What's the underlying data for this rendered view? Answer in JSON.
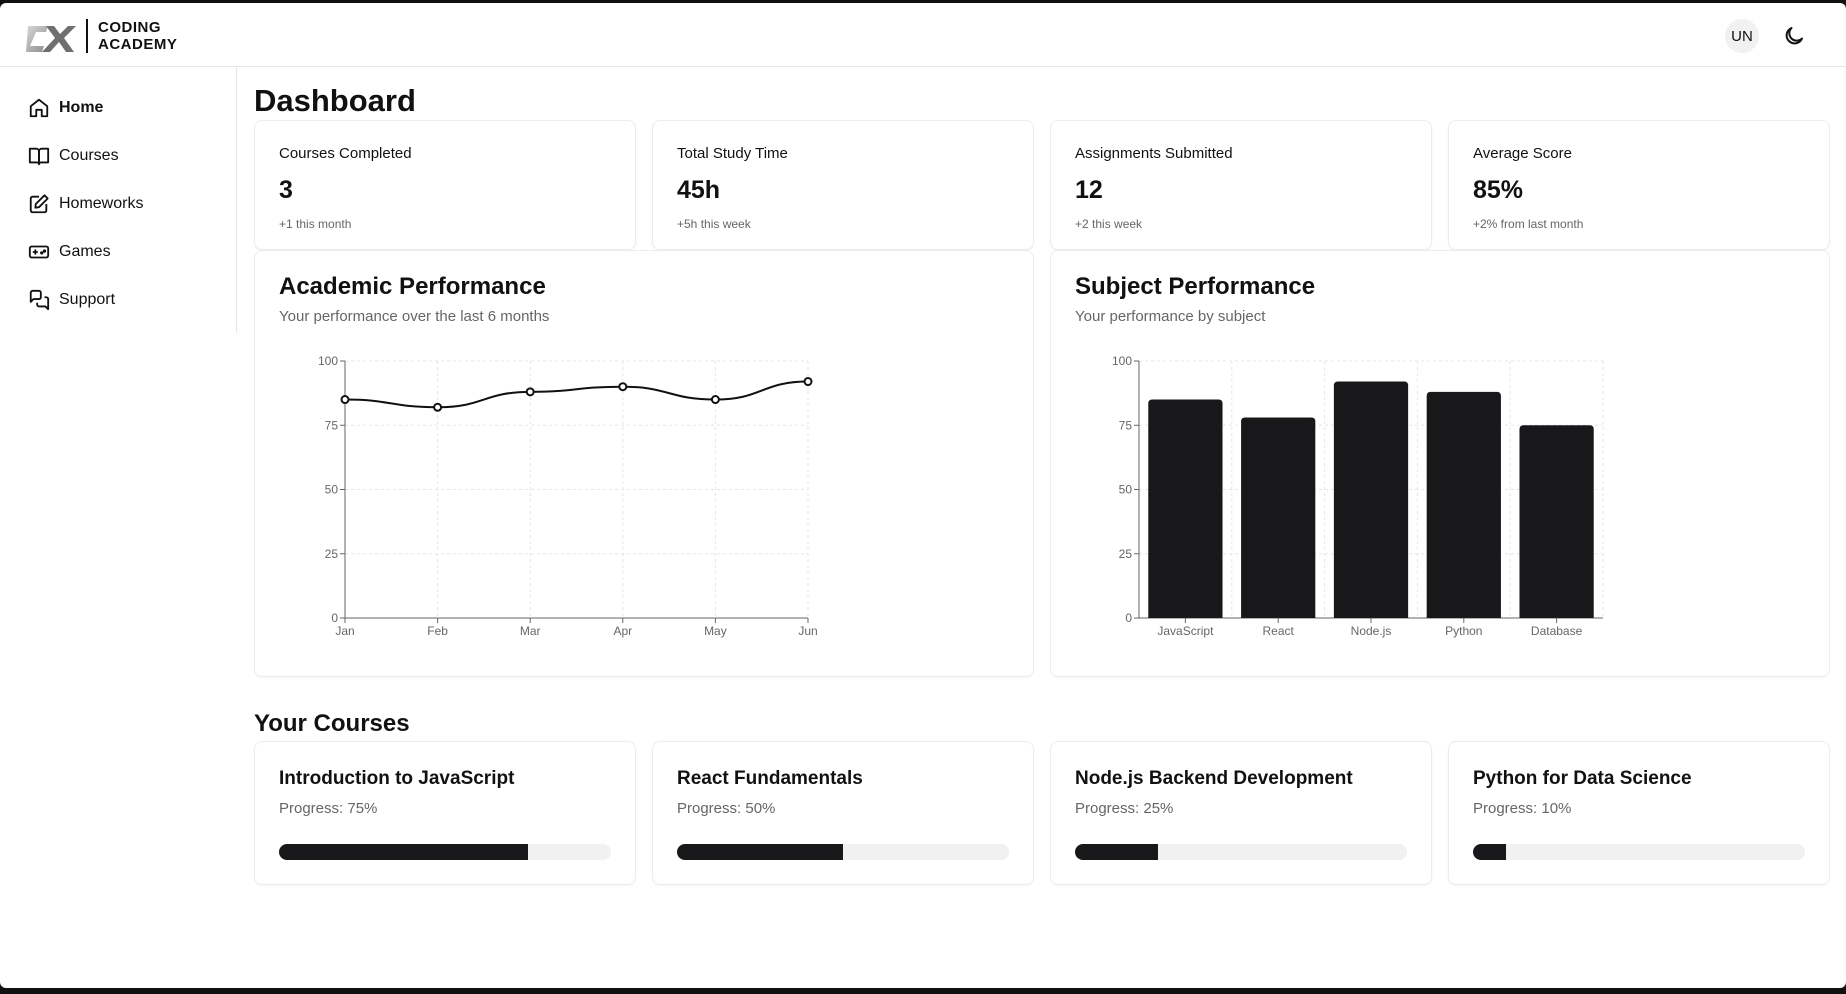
{
  "app": {
    "brand_line1": "CODING",
    "brand_line2": "ACADEMY",
    "user_initials": "UN"
  },
  "sidebar": {
    "items": [
      {
        "label": "Home",
        "icon": "home-icon",
        "active": true
      },
      {
        "label": "Courses",
        "icon": "book-icon"
      },
      {
        "label": "Homeworks",
        "icon": "edit-icon"
      },
      {
        "label": "Games",
        "icon": "gamepad-icon"
      },
      {
        "label": "Support",
        "icon": "chat-icon"
      }
    ]
  },
  "page": {
    "title": "Dashboard"
  },
  "stats": [
    {
      "label": "Courses Completed",
      "value": "3",
      "note": "+1 this month"
    },
    {
      "label": "Total Study Time",
      "value": "45h",
      "note": "+5h this week"
    },
    {
      "label": "Assignments Submitted",
      "value": "12",
      "note": "+2 this week"
    },
    {
      "label": "Average Score",
      "value": "85%",
      "note": "+2% from last month"
    }
  ],
  "academic_chart": {
    "title": "Academic Performance",
    "subtitle": "Your performance over the last 6 months"
  },
  "subject_chart": {
    "title": "Subject Performance",
    "subtitle": "Your performance by subject"
  },
  "chart_data": [
    {
      "type": "line",
      "x": [
        "Jan",
        "Feb",
        "Mar",
        "Apr",
        "May",
        "Jun"
      ],
      "values": [
        85,
        82,
        88,
        90,
        85,
        92
      ],
      "ylim": [
        0,
        100
      ],
      "yticks": [
        0,
        25,
        50,
        75,
        100
      ],
      "grid": true
    },
    {
      "type": "bar",
      "categories": [
        "JavaScript",
        "React",
        "Node.js",
        "Python",
        "Database"
      ],
      "values": [
        85,
        78,
        92,
        88,
        75
      ],
      "ylim": [
        0,
        100
      ],
      "yticks": [
        0,
        25,
        50,
        75,
        100
      ],
      "grid": true
    }
  ],
  "courses_section": {
    "title": "Your Courses"
  },
  "courses": [
    {
      "title": "Introduction to JavaScript",
      "progress_label": "Progress: 75%",
      "progress": 75
    },
    {
      "title": "React Fundamentals",
      "progress_label": "Progress: 50%",
      "progress": 50
    },
    {
      "title": "Node.js Backend Development",
      "progress_label": "Progress: 25%",
      "progress": 25
    },
    {
      "title": "Python for Data Science",
      "progress_label": "Progress: 10%",
      "progress": 10
    }
  ],
  "colors": {
    "accent": "#18181b",
    "track": "#f1f1f1",
    "muted": "#666666"
  }
}
